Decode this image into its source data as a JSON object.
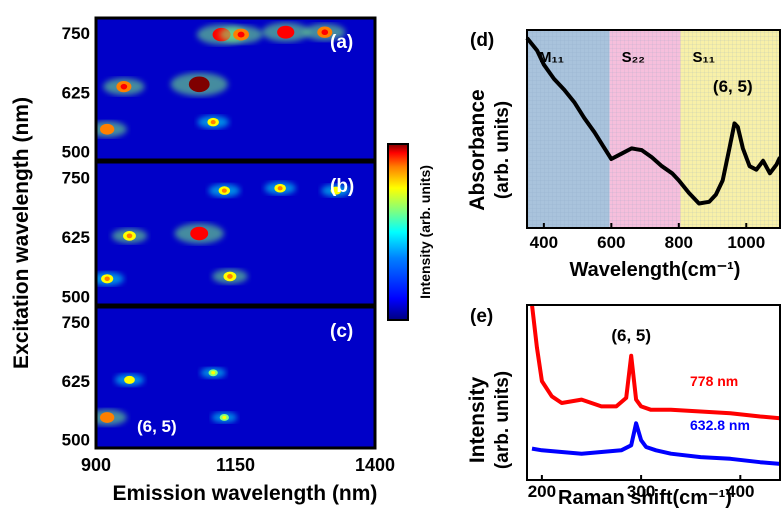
{
  "chart_data": [
    {
      "panel": "(a)",
      "type": "heatmap",
      "x": {
        "min": 900,
        "max": 1400,
        "ticks": [
          "900",
          "1150",
          "1400"
        ],
        "label": "Emission wavelength (nm)"
      },
      "y": {
        "min": 480,
        "max": 780,
        "ticks": [
          "500",
          "625",
          "750"
        ],
        "label": "Excitation wavelength (nm)"
      },
      "colorbar_label": "Intensity (arb. units)",
      "colormap": [
        "#00007f",
        "#0000ff",
        "#007fff",
        "#00ffff",
        "#7fff7f",
        "#ffff00",
        "#ff7f00",
        "#ff0000",
        "#7f0000"
      ],
      "spots": [
        {
          "x": 1085,
          "y": 640,
          "i": 1.0
        },
        {
          "x": 950,
          "y": 635,
          "i": 0.6
        },
        {
          "x": 920,
          "y": 545,
          "i": 0.55
        },
        {
          "x": 1125,
          "y": 745,
          "i": 0.8
        },
        {
          "x": 1160,
          "y": 745,
          "i": 0.65
        },
        {
          "x": 1240,
          "y": 750,
          "i": 0.75
        },
        {
          "x": 1310,
          "y": 750,
          "i": 0.6
        },
        {
          "x": 1110,
          "y": 560,
          "i": 0.35
        }
      ]
    },
    {
      "panel": "(b)",
      "type": "heatmap",
      "x": {
        "min": 900,
        "max": 1400,
        "ticks": [
          "900",
          "1150",
          "1400"
        ]
      },
      "y": {
        "min": 480,
        "max": 780,
        "ticks": [
          "500",
          "625",
          "750"
        ]
      },
      "spots": [
        {
          "x": 1085,
          "y": 630,
          "i": 0.8
        },
        {
          "x": 960,
          "y": 625,
          "i": 0.45
        },
        {
          "x": 920,
          "y": 535,
          "i": 0.4
        },
        {
          "x": 1140,
          "y": 540,
          "i": 0.45
        },
        {
          "x": 1130,
          "y": 720,
          "i": 0.35
        },
        {
          "x": 1230,
          "y": 725,
          "i": 0.35
        },
        {
          "x": 1330,
          "y": 720,
          "i": 0.3
        }
      ]
    },
    {
      "panel": "(c)",
      "type": "heatmap",
      "x": {
        "min": 900,
        "max": 1400,
        "ticks": [
          "900",
          "1150",
          "1400"
        ]
      },
      "y": {
        "min": 480,
        "max": 780,
        "ticks": [
          "500",
          "625",
          "750"
        ]
      },
      "annotation": "(6, 5)",
      "spots": [
        {
          "x": 920,
          "y": 545,
          "i": 0.55
        },
        {
          "x": 960,
          "y": 625,
          "i": 0.3
        },
        {
          "x": 1110,
          "y": 640,
          "i": 0.2
        },
        {
          "x": 1130,
          "y": 545,
          "i": 0.2
        }
      ]
    },
    {
      "panel": "(d)",
      "type": "line",
      "xlabel": "Wavelength(cm⁻¹)",
      "ylabel": [
        "Absorbance",
        "(arb. units)"
      ],
      "xlim": [
        350,
        1100
      ],
      "xticks": [
        "400",
        "600",
        "800",
        "1000"
      ],
      "regions": [
        {
          "label": "M₁₁",
          "from": 350,
          "to": 595,
          "color": "#a9c3dc"
        },
        {
          "label": "S₂₂",
          "from": 595,
          "to": 805,
          "color": "#f6bfdc"
        },
        {
          "label": "S₁₁",
          "from": 805,
          "to": 1100,
          "color": "#f8f0a8"
        }
      ],
      "annotation": "(6, 5)",
      "x": [
        350,
        380,
        400,
        430,
        460,
        490,
        520,
        550,
        580,
        600,
        630,
        660,
        690,
        720,
        750,
        780,
        800,
        830,
        860,
        890,
        910,
        930,
        950,
        965,
        975,
        990,
        1010,
        1030,
        1050,
        1070,
        1090,
        1100
      ],
      "y": [
        1.0,
        0.93,
        0.85,
        0.77,
        0.71,
        0.64,
        0.55,
        0.47,
        0.38,
        0.32,
        0.35,
        0.38,
        0.37,
        0.33,
        0.28,
        0.24,
        0.2,
        0.13,
        0.07,
        0.08,
        0.12,
        0.2,
        0.38,
        0.52,
        0.5,
        0.38,
        0.28,
        0.26,
        0.31,
        0.24,
        0.29,
        0.33
      ]
    },
    {
      "panel": "(e)",
      "type": "line",
      "xlabel": "Raman shift(cm⁻¹)",
      "ylabel": [
        "Intensity",
        "(arb. units)"
      ],
      "xlim": [
        185,
        440
      ],
      "xticks": [
        "200",
        "300",
        "400"
      ],
      "annotation": "(6, 5)",
      "series": [
        {
          "name": "778 nm",
          "color": "#ff0000",
          "x": [
            190,
            195,
            200,
            210,
            220,
            240,
            260,
            275,
            285,
            290,
            295,
            300,
            310,
            330,
            360,
            390,
            420,
            440
          ],
          "y": [
            1.0,
            0.75,
            0.55,
            0.46,
            0.42,
            0.44,
            0.4,
            0.4,
            0.45,
            0.7,
            0.44,
            0.4,
            0.38,
            0.38,
            0.37,
            0.36,
            0.34,
            0.33
          ]
        },
        {
          "name": "632.8 nm",
          "color": "#0000ff",
          "x": [
            190,
            200,
            220,
            240,
            260,
            280,
            290,
            295,
            300,
            305,
            315,
            330,
            360,
            390,
            420,
            440
          ],
          "y": [
            0.15,
            0.14,
            0.13,
            0.12,
            0.13,
            0.14,
            0.17,
            0.3,
            0.2,
            0.16,
            0.14,
            0.12,
            0.1,
            0.09,
            0.07,
            0.06
          ]
        }
      ]
    }
  ]
}
